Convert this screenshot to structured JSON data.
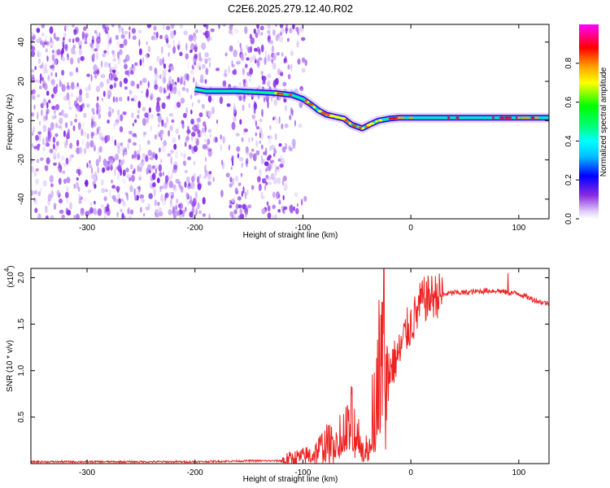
{
  "title": "C2E6.2025.279.12.40.R02",
  "chart_data": [
    {
      "type": "heatmap",
      "name": "spectrogram",
      "xlabel": "Height of straight line (km)",
      "ylabel": "Frequency (Hz)",
      "xlim": [
        -352,
        128
      ],
      "ylim": [
        -50,
        49
      ],
      "xticks": [
        -300,
        -200,
        -100,
        0,
        100
      ],
      "yticks": [
        -40,
        -20,
        0,
        20,
        40
      ],
      "xticklabels": [
        "-300",
        "-200",
        "-100",
        "0",
        "100"
      ],
      "yticklabels": [
        "-40",
        "-20",
        "0",
        "20",
        "40"
      ],
      "colorbar": {
        "label": "Normalized spectral amplitude",
        "range": [
          0,
          1
        ],
        "ticks": [
          0.0,
          0.2,
          0.4,
          0.6,
          0.8
        ],
        "ticklabels": [
          "0.0",
          "0.2",
          "0.4",
          "0.6",
          "0.8"
        ],
        "colors": [
          "#ffffff",
          "#dcc8f8",
          "#8a2be2",
          "#0000ff",
          "#00bfff",
          "#00ffff",
          "#00ff7f",
          "#00ff00",
          "#ffff00",
          "#ffa500",
          "#ff0000",
          "#ff00ff"
        ]
      },
      "noise_region": {
        "x_range": [
          -352,
          -115
        ],
        "sparse_gap": [
          -185,
          -168
        ]
      },
      "signal_track": [
        {
          "x": -200,
          "y": 16
        },
        {
          "x": -190,
          "y": 15
        },
        {
          "x": -160,
          "y": 15
        },
        {
          "x": -125,
          "y": 14
        },
        {
          "x": -110,
          "y": 13
        },
        {
          "x": -100,
          "y": 11
        },
        {
          "x": -92,
          "y": 8
        },
        {
          "x": -85,
          "y": 5
        },
        {
          "x": -78,
          "y": 3
        },
        {
          "x": -70,
          "y": 2
        },
        {
          "x": -62,
          "y": 1
        },
        {
          "x": -55,
          "y": -2
        },
        {
          "x": -45,
          "y": -4
        },
        {
          "x": -38,
          "y": -2
        },
        {
          "x": -30,
          "y": 0
        },
        {
          "x": -20,
          "y": 1
        },
        {
          "x": -10,
          "y": 1.5
        },
        {
          "x": 0,
          "y": 1.5
        },
        {
          "x": 20,
          "y": 1.5
        },
        {
          "x": 50,
          "y": 1.5
        },
        {
          "x": 80,
          "y": 1.5
        },
        {
          "x": 100,
          "y": 1.5
        },
        {
          "x": 128,
          "y": 1.5
        }
      ]
    },
    {
      "type": "line",
      "name": "snr",
      "xlabel": "Height of straight line (km)",
      "ylabel": "SNR (10 * v/v)",
      "scale_label": "(x10",
      "scale_exponent": "4",
      "xlim": [
        -352,
        128
      ],
      "ylim": [
        0,
        2.1
      ],
      "xticks": [
        -300,
        -200,
        -100,
        0,
        100
      ],
      "yticks": [
        0.5,
        1.0,
        1.5,
        2.0
      ],
      "xticklabels": [
        "-300",
        "-200",
        "-100",
        "0",
        "100"
      ],
      "yticklabels": [
        "0.5",
        "1.0",
        "1.5",
        "2.0"
      ],
      "color": "#ee2222",
      "x": [
        -352,
        -300,
        -250,
        -200,
        -150,
        -120,
        -110,
        -100,
        -90,
        -80,
        -70,
        -60,
        -55,
        -50,
        -45,
        -40,
        -35,
        -30,
        -25,
        -22,
        -20,
        -15,
        -10,
        -5,
        0,
        5,
        10,
        20,
        30,
        40,
        50,
        60,
        70,
        80,
        90,
        100,
        110,
        120,
        128
      ],
      "y": [
        0.02,
        0.02,
        0.02,
        0.02,
        0.03,
        0.03,
        0.05,
        0.07,
        0.1,
        0.2,
        0.25,
        0.35,
        0.45,
        0.35,
        0.15,
        0.2,
        0.6,
        1.0,
        1.2,
        0.8,
        1.0,
        1.1,
        1.2,
        1.4,
        1.5,
        1.6,
        1.75,
        1.8,
        1.82,
        1.84,
        1.84,
        1.85,
        1.86,
        1.86,
        1.84,
        1.83,
        1.78,
        1.74,
        1.72
      ],
      "spikes": [
        {
          "x": -25,
          "y": 2.1
        },
        {
          "x": 90,
          "y": 2.05
        }
      ]
    }
  ]
}
